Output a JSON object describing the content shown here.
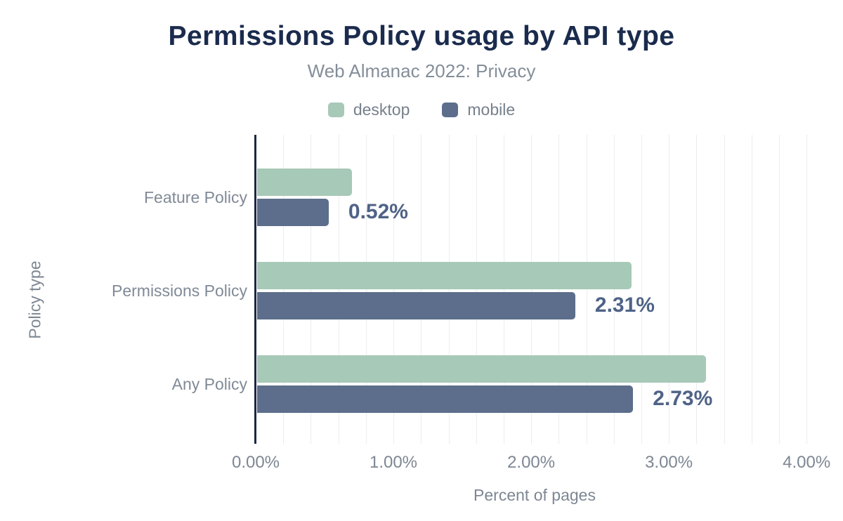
{
  "header": {
    "title": "Permissions Policy usage by API type",
    "subtitle": "Web Almanac 2022: Privacy"
  },
  "chart_data": {
    "type": "bar",
    "orientation": "horizontal",
    "title": "Permissions Policy usage by API type",
    "subtitle": "Web Almanac 2022: Privacy",
    "categories": [
      "Feature Policy",
      "Permissions Policy",
      "Any Policy"
    ],
    "series": [
      {
        "name": "desktop",
        "color": "#a7c9b7",
        "values": [
          0.69,
          2.72,
          3.26
        ]
      },
      {
        "name": "mobile",
        "color": "#5c6e8b",
        "values": [
          0.52,
          2.31,
          2.73
        ]
      }
    ],
    "bar_labels": {
      "labeled_series": "mobile",
      "values": [
        "0.52%",
        "2.31%",
        "2.73%"
      ],
      "color": "#4f6386"
    },
    "xlabel": "Percent of pages",
    "ylabel": "Policy type",
    "xlim": [
      0,
      4.05
    ],
    "x_ticks": [
      {
        "value": 0,
        "label": "0.00%"
      },
      {
        "value": 1,
        "label": "1.00%"
      },
      {
        "value": 2,
        "label": "2.00%"
      },
      {
        "value": 3,
        "label": "3.00%"
      },
      {
        "value": 4,
        "label": "4.00%"
      }
    ],
    "grid": {
      "minor_step": 0.2,
      "max": 4.0,
      "color": "#ededf1",
      "show": true
    },
    "legend_position": "top",
    "axis_line_color": "#1b2845",
    "text_colors": {
      "title": "#1a2b4d",
      "subtitle": "#848e99",
      "axis": "#7d8793",
      "legend": "#76808c"
    }
  }
}
